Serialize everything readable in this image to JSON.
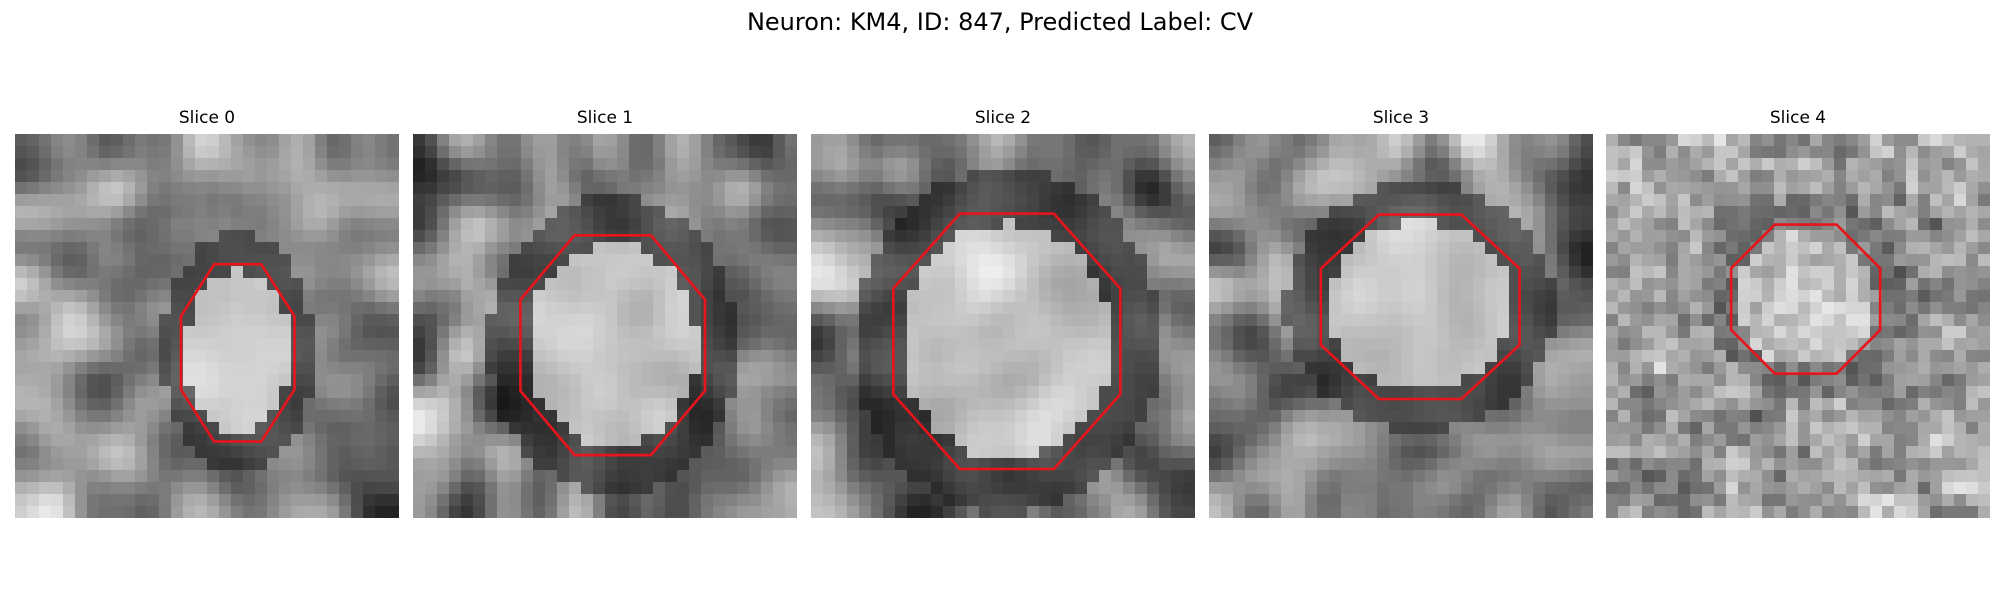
{
  "figure": {
    "title": "Neuron: KM4, ID: 847, Predicted Label: CV"
  },
  "panels": [
    {
      "title": "Slice 0",
      "image": "grayscale-em-slice",
      "mask": {
        "center": [
          0.58,
          0.57
        ],
        "radius": [
          0.16,
          0.25
        ]
      }
    },
    {
      "title": "Slice 1",
      "image": "grayscale-em-slice",
      "mask": {
        "center": [
          0.52,
          0.55
        ],
        "radius": [
          0.26,
          0.31
        ]
      }
    },
    {
      "title": "Slice 2",
      "image": "grayscale-em-slice",
      "mask": {
        "center": [
          0.51,
          0.54
        ],
        "radius": [
          0.32,
          0.36
        ]
      }
    },
    {
      "title": "Slice 3",
      "image": "grayscale-em-slice",
      "mask": {
        "center": [
          0.55,
          0.45
        ],
        "radius": [
          0.28,
          0.26
        ]
      }
    },
    {
      "title": "Slice 4",
      "image": "grayscale-em-slice",
      "mask": {
        "center": [
          0.52,
          0.43
        ],
        "radius": [
          0.21,
          0.21
        ]
      }
    }
  ],
  "colors": {
    "outline": "#e8141b",
    "background": "#ffffff"
  }
}
